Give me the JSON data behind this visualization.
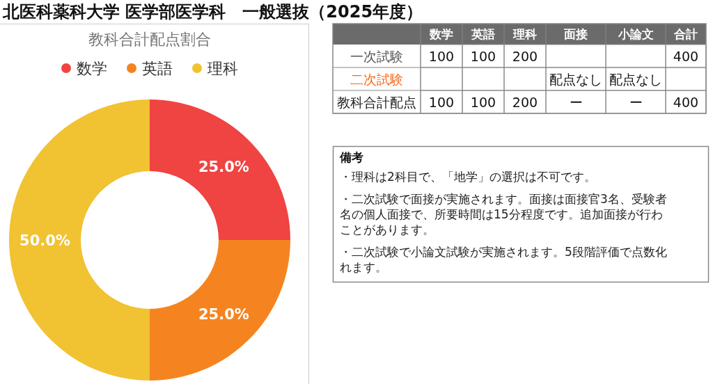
{
  "chart_data": [
    {
      "type": "other",
      "title": "北医科薬科大学 医学部医学科　一般選抜（2025年度）"
    },
    {
      "type": "donut",
      "title": "教科合計配点割合",
      "categories": [
        "数学",
        "英語",
        "理科"
      ],
      "values": [
        25,
        25,
        50
      ],
      "colors": [
        "#ef4442",
        "#f58420",
        "#f1c232"
      ],
      "value_labels": [
        "25.0%",
        "25.0%",
        "50.0%"
      ],
      "legend": "top"
    },
    {
      "type": "heatmap",
      "categories": [
        "数学",
        "英語",
        "理科",
        "面接",
        "小論文",
        "合計"
      ],
      "y_categories": [
        "一次試験",
        "二次試験",
        "教科合計配点"
      ],
      "cells": [
        [
          null,
          null,
          null,
          null,
          null,
          null
        ],
        [
          null,
          null,
          null,
          null,
          null,
          null
        ],
        [
          null,
          null,
          null,
          null,
          null,
          null
        ]
      ],
      "cell_labels": [
        [
          "100",
          "100",
          "200",
          null,
          null,
          "400"
        ],
        [
          null,
          null,
          null,
          "配点なし",
          "配点なし",
          null
        ],
        [
          "100",
          "100",
          "200",
          "ー",
          "ー",
          "400"
        ]
      ]
    },
    {
      "type": "other",
      "title": "備考",
      "annotations": [
        "・理科は2科目で、「地学」の選択は不可です。",
        "・二次試験で面接が実施されます。面接は面接官3名、受験者名の個人面接で、所要時間は15分程度です。追加面接が行わことがあります。",
        "・二次試験で小論文試験が実施されます。5段階評価で点数化れます。"
      ]
    }
  ]
}
